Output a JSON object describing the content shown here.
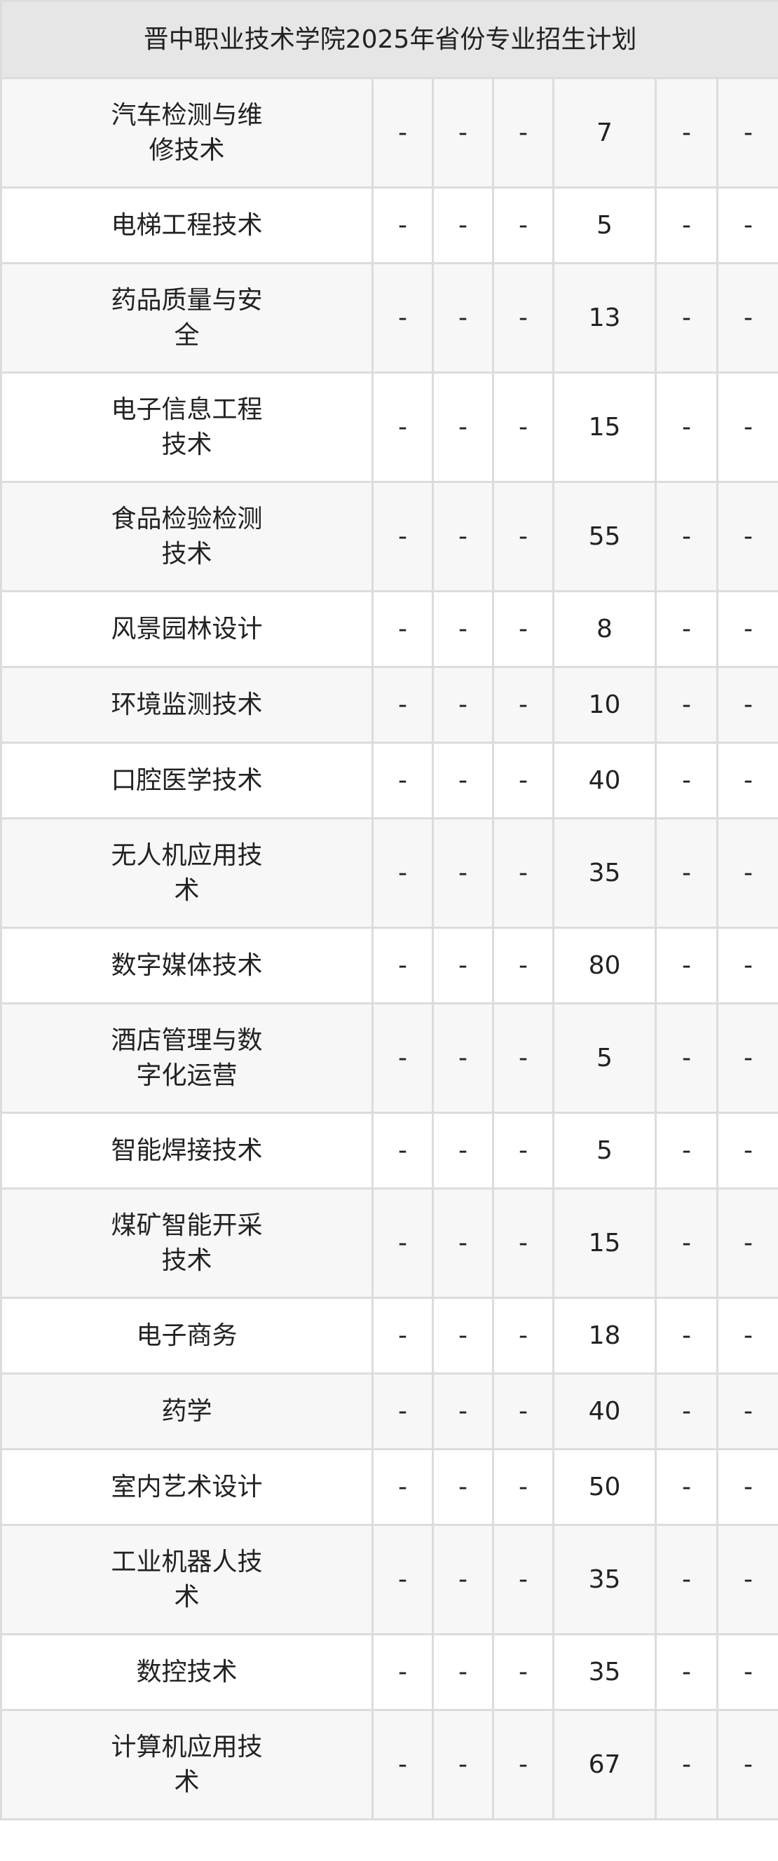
{
  "title": "晋中职业技术学院2025年省份专业招生计划",
  "rows": [
    {
      "name": "汽车检测与维修技术",
      "cells": [
        "-",
        "-",
        "-",
        "7",
        "-",
        "-"
      ]
    },
    {
      "name": "电梯工程技术",
      "cells": [
        "-",
        "-",
        "-",
        "5",
        "-",
        "-"
      ]
    },
    {
      "name": "药品质量与安全",
      "cells": [
        "-",
        "-",
        "-",
        "13",
        "-",
        "-"
      ]
    },
    {
      "name": "电子信息工程技术",
      "cells": [
        "-",
        "-",
        "-",
        "15",
        "-",
        "-"
      ]
    },
    {
      "name": "食品检验检测技术",
      "cells": [
        "-",
        "-",
        "-",
        "55",
        "-",
        "-"
      ]
    },
    {
      "name": "风景园林设计",
      "cells": [
        "-",
        "-",
        "-",
        "8",
        "-",
        "-"
      ]
    },
    {
      "name": "环境监测技术",
      "cells": [
        "-",
        "-",
        "-",
        "10",
        "-",
        "-"
      ]
    },
    {
      "name": "口腔医学技术",
      "cells": [
        "-",
        "-",
        "-",
        "40",
        "-",
        "-"
      ]
    },
    {
      "name": "无人机应用技术",
      "cells": [
        "-",
        "-",
        "-",
        "35",
        "-",
        "-"
      ]
    },
    {
      "name": "数字媒体技术",
      "cells": [
        "-",
        "-",
        "-",
        "80",
        "-",
        "-"
      ]
    },
    {
      "name": "酒店管理与数字化运营",
      "cells": [
        "-",
        "-",
        "-",
        "5",
        "-",
        "-"
      ]
    },
    {
      "name": "智能焊接技术",
      "cells": [
        "-",
        "-",
        "-",
        "5",
        "-",
        "-"
      ]
    },
    {
      "name": "煤矿智能开采技术",
      "cells": [
        "-",
        "-",
        "-",
        "15",
        "-",
        "-"
      ]
    },
    {
      "name": "电子商务",
      "cells": [
        "-",
        "-",
        "-",
        "18",
        "-",
        "-"
      ]
    },
    {
      "name": "药学",
      "cells": [
        "-",
        "-",
        "-",
        "40",
        "-",
        "-"
      ]
    },
    {
      "name": "室内艺术设计",
      "cells": [
        "-",
        "-",
        "-",
        "50",
        "-",
        "-"
      ]
    },
    {
      "name": "工业机器人技术",
      "cells": [
        "-",
        "-",
        "-",
        "35",
        "-",
        "-"
      ]
    },
    {
      "name": "数控技术",
      "cells": [
        "-",
        "-",
        "-",
        "35",
        "-",
        "-"
      ]
    },
    {
      "name": "计算机应用技术",
      "cells": [
        "-",
        "-",
        "-",
        "67",
        "-",
        "-"
      ]
    }
  ]
}
